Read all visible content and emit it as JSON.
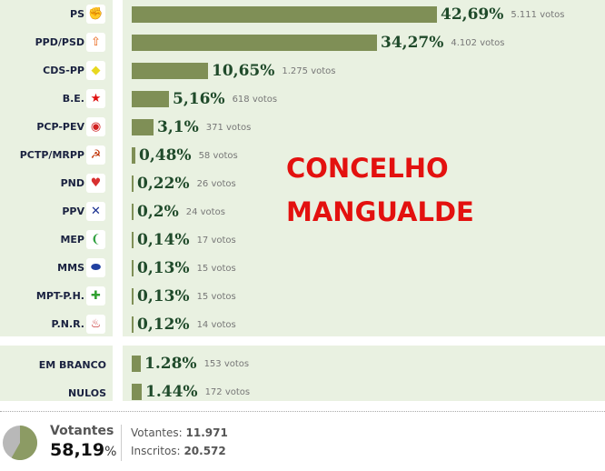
{
  "title_lines": [
    "CONCELHO",
    "MANGUALDE"
  ],
  "parties": [
    {
      "name": "PS",
      "pct": 42.69,
      "pct_label": "42,69%",
      "votes": "5.111 votos",
      "icon": "ps-fist-rose-icon",
      "glyph": "✊",
      "color": "#e04050"
    },
    {
      "name": "PPD/PSD",
      "pct": 34.27,
      "pct_label": "34,27%",
      "votes": "4.102 votos",
      "icon": "psd-arrow-icon",
      "glyph": "⇧",
      "color": "#e86010"
    },
    {
      "name": "CDS-PP",
      "pct": 10.65,
      "pct_label": "10,65%",
      "votes": "1.275 votos",
      "icon": "cds-logo-icon",
      "glyph": "◆",
      "color": "#e8d820"
    },
    {
      "name": "B.E.",
      "pct": 5.16,
      "pct_label": "5,16%",
      "votes": "618 votos",
      "icon": "be-star-figure-icon",
      "glyph": "★",
      "color": "#e01010"
    },
    {
      "name": "PCP-PEV",
      "pct": 3.1,
      "pct_label": "3,1%",
      "votes": "371 votos",
      "icon": "cdu-logo-icon",
      "glyph": "◉",
      "color": "#d02020"
    },
    {
      "name": "PCTP/MRPP",
      "pct": 0.48,
      "pct_label": "0,48%",
      "votes": "58 votos",
      "icon": "hammer-sickle-icon",
      "glyph": "☭",
      "color": "#c03000"
    },
    {
      "name": "PND",
      "pct": 0.22,
      "pct_label": "0,22%",
      "votes": "26 votos",
      "icon": "heart-icon",
      "glyph": "♥",
      "color": "#d83030"
    },
    {
      "name": "PPV",
      "pct": 0.2,
      "pct_label": "0,2%",
      "votes": "24 votos",
      "icon": "ppv-dove-icon",
      "glyph": "✕",
      "color": "#1a3090"
    },
    {
      "name": "MEP",
      "pct": 0.14,
      "pct_label": "0,14%",
      "votes": "17 votos",
      "icon": "mep-leaf-icon",
      "glyph": "❨",
      "color": "#30a040"
    },
    {
      "name": "MMS",
      "pct": 0.13,
      "pct_label": "0,13%",
      "votes": "15 votos",
      "icon": "mms-bubble-icon",
      "glyph": "⬬",
      "color": "#2040a0"
    },
    {
      "name": "MPT-P.H.",
      "pct": 0.13,
      "pct_label": "0,13%",
      "votes": "15 votos",
      "icon": "mpt-ph-icon",
      "glyph": "✚",
      "color": "#30a030"
    },
    {
      "name": "P.N.R.",
      "pct": 0.12,
      "pct_label": "0,12%",
      "votes": "14 votos",
      "icon": "pnr-flame-icon",
      "glyph": "♨",
      "color": "#c02020"
    }
  ],
  "others": [
    {
      "name": "EM BRANCO",
      "pct": 1.28,
      "pct_label": "1.28%",
      "votes": "153 votos"
    },
    {
      "name": "NULOS",
      "pct": 1.44,
      "pct_label": "1.44%",
      "votes": "172 votos"
    }
  ],
  "turnout": {
    "label": "Votantes",
    "pct": 58.19,
    "pct_value": "58,19",
    "pct_sign": "%",
    "votantes_label": "Votantes:",
    "votantes": "11.971",
    "inscritos_label": "Inscritos:",
    "inscritos": "20.572"
  },
  "colors": {
    "bar": "#7f8f56",
    "title": "#e3110f",
    "panel": "#e9f1e1",
    "pie_fill": "#8c9b64",
    "pie_rest": "#b8b8b8"
  }
}
